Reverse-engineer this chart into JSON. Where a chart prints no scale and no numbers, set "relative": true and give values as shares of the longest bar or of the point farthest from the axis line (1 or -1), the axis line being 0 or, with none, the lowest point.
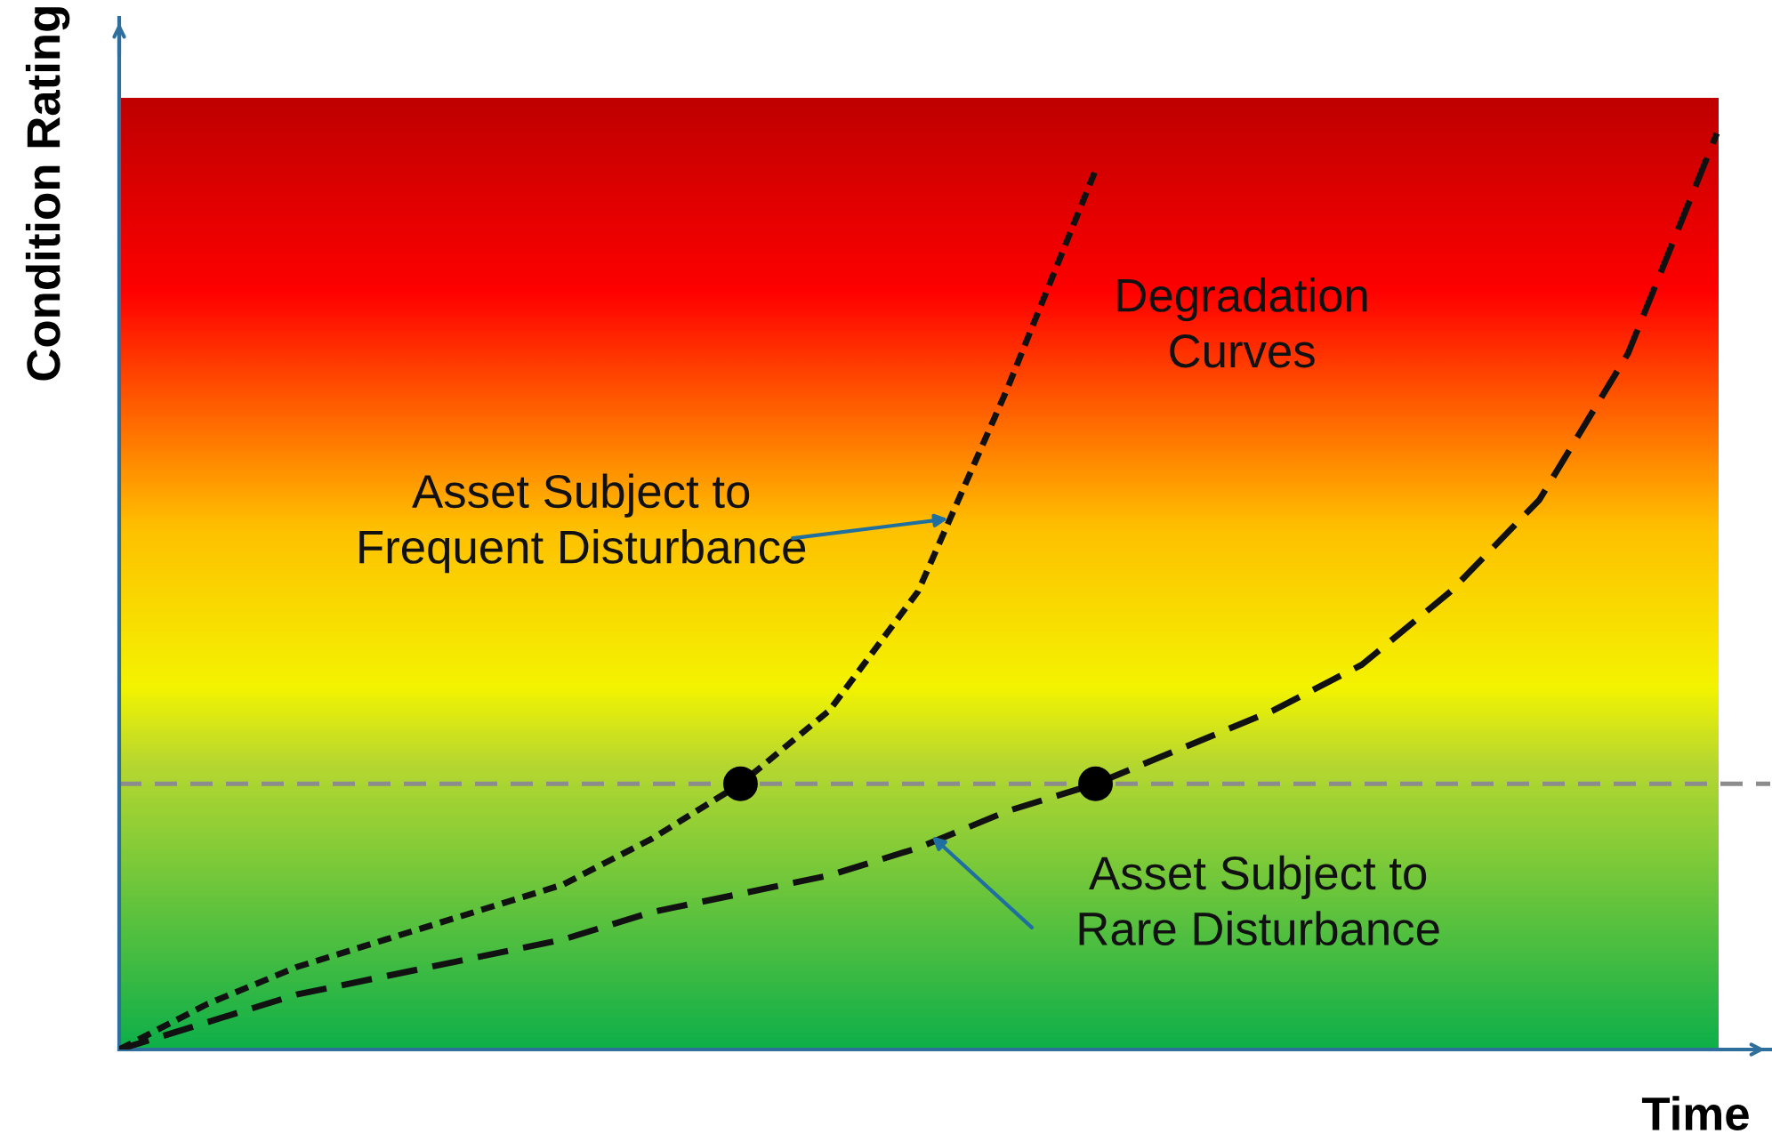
{
  "chart_data": {
    "type": "line",
    "relative": true,
    "xlabel": "Time",
    "ylabel": "Condition Rating",
    "categories": [
      null,
      null,
      null,
      null,
      null,
      null,
      null,
      null,
      null,
      null,
      null,
      null,
      null,
      null,
      null,
      null,
      null,
      null,
      null
    ],
    "series": [
      {
        "color": "#111111",
        "line_style": "dashed",
        "values": [
          0,
          0.05,
          0.09,
          0.12,
          0.15,
          0.18,
          0.23,
          0.29,
          0.37,
          0.5,
          0.72,
          0.96,
          null,
          null,
          null,
          null,
          null,
          null,
          null
        ]
      },
      {
        "color": "#111111",
        "line_style": "dashed",
        "values": [
          0,
          0.03,
          0.06,
          0.08,
          0.1,
          0.12,
          0.15,
          0.17,
          0.19,
          0.22,
          0.26,
          0.29,
          0.33,
          0.37,
          0.42,
          0.5,
          0.6,
          0.76,
          1.0
        ]
      }
    ],
    "ref_lines": [
      {
        "axis": "y",
        "value": 0.29,
        "color": "#8c8c8c",
        "line_style": "dashed"
      }
    ],
    "annotations": [
      "Degradation\nCurves",
      "Asset Subject to\nFrequent Disturbance",
      "Asset Subject to\nRare Disturbance"
    ],
    "legend": false
  }
}
